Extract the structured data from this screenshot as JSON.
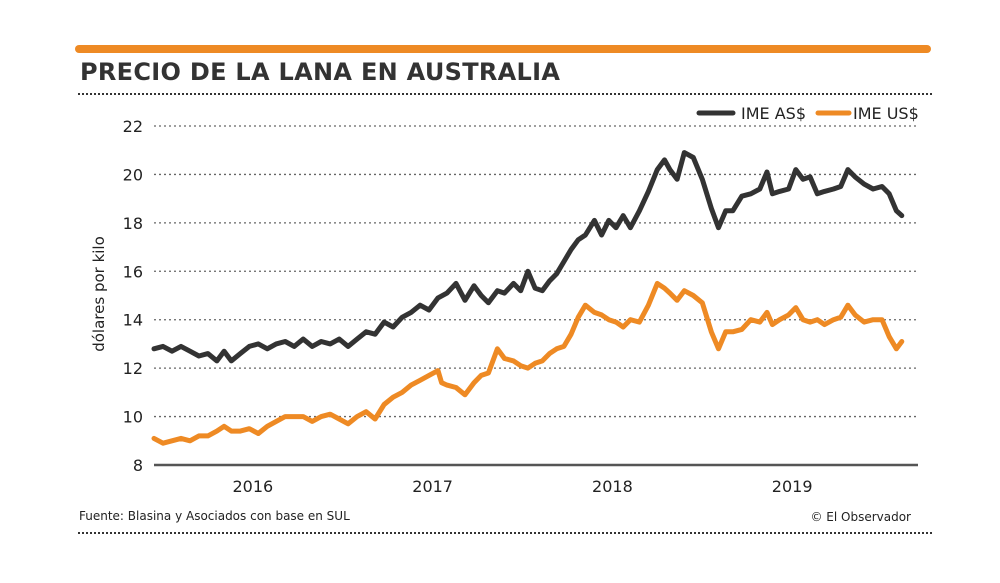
{
  "title": "PRECIO DE LA LANA EN AUSTRALIA",
  "source": "Fuente: Blasina y Asociados con base en SUL",
  "credit": "© El Observador",
  "colors": {
    "accent": "#ee8a24",
    "series_aud": "#333333",
    "series_usd": "#ee8a24",
    "grid": "#666666"
  },
  "chart_data": {
    "type": "line",
    "ylabel": "dólares por kilo",
    "xlabel": "",
    "ylim": [
      8,
      22
    ],
    "yticks": [
      "8",
      "10",
      "12",
      "14",
      "16",
      "18",
      "20",
      "22"
    ],
    "xlim": [
      2015.5,
      2019.75
    ],
    "xticks": [
      {
        "label": "2016",
        "x": 2016.05
      },
      {
        "label": "2017",
        "x": 2017.05
      },
      {
        "label": "2018",
        "x": 2018.05
      },
      {
        "label": "2019",
        "x": 2019.05
      }
    ],
    "grid": true,
    "legend_position": "top-right",
    "series": [
      {
        "name": "IME AS$",
        "color": "#333333",
        "points": [
          [
            2015.5,
            12.8
          ],
          [
            2015.55,
            12.9
          ],
          [
            2015.6,
            12.7
          ],
          [
            2015.65,
            12.9
          ],
          [
            2015.7,
            12.7
          ],
          [
            2015.75,
            12.5
          ],
          [
            2015.8,
            12.6
          ],
          [
            2015.85,
            12.3
          ],
          [
            2015.89,
            12.7
          ],
          [
            2015.93,
            12.3
          ],
          [
            2015.98,
            12.6
          ],
          [
            2016.03,
            12.9
          ],
          [
            2016.08,
            13.0
          ],
          [
            2016.13,
            12.8
          ],
          [
            2016.18,
            13.0
          ],
          [
            2016.23,
            13.1
          ],
          [
            2016.28,
            12.9
          ],
          [
            2016.33,
            13.2
          ],
          [
            2016.38,
            12.9
          ],
          [
            2016.43,
            13.1
          ],
          [
            2016.48,
            13.0
          ],
          [
            2016.53,
            13.2
          ],
          [
            2016.58,
            12.9
          ],
          [
            2016.63,
            13.2
          ],
          [
            2016.68,
            13.5
          ],
          [
            2016.73,
            13.4
          ],
          [
            2016.78,
            13.9
          ],
          [
            2016.83,
            13.7
          ],
          [
            2016.88,
            14.1
          ],
          [
            2016.93,
            14.3
          ],
          [
            2016.98,
            14.6
          ],
          [
            2017.03,
            14.4
          ],
          [
            2017.08,
            14.9
          ],
          [
            2017.13,
            15.1
          ],
          [
            2017.18,
            15.5
          ],
          [
            2017.23,
            14.8
          ],
          [
            2017.28,
            15.4
          ],
          [
            2017.32,
            15.0
          ],
          [
            2017.36,
            14.7
          ],
          [
            2017.41,
            15.2
          ],
          [
            2017.45,
            15.1
          ],
          [
            2017.5,
            15.5
          ],
          [
            2017.54,
            15.2
          ],
          [
            2017.58,
            16.0
          ],
          [
            2017.62,
            15.3
          ],
          [
            2017.66,
            15.2
          ],
          [
            2017.7,
            15.6
          ],
          [
            2017.74,
            15.9
          ],
          [
            2017.78,
            16.4
          ],
          [
            2017.82,
            16.9
          ],
          [
            2017.86,
            17.3
          ],
          [
            2017.9,
            17.5
          ],
          [
            2017.95,
            18.1
          ],
          [
            2017.99,
            17.5
          ],
          [
            2018.03,
            18.1
          ],
          [
            2018.07,
            17.8
          ],
          [
            2018.11,
            18.3
          ],
          [
            2018.15,
            17.8
          ],
          [
            2018.2,
            18.5
          ],
          [
            2018.25,
            19.3
          ],
          [
            2018.3,
            20.2
          ],
          [
            2018.34,
            20.6
          ],
          [
            2018.37,
            20.2
          ],
          [
            2018.41,
            19.8
          ],
          [
            2018.45,
            20.9
          ],
          [
            2018.5,
            20.7
          ],
          [
            2018.55,
            19.8
          ],
          [
            2018.6,
            18.6
          ],
          [
            2018.64,
            17.8
          ],
          [
            2018.68,
            18.5
          ],
          [
            2018.72,
            18.5
          ],
          [
            2018.77,
            19.1
          ],
          [
            2018.82,
            19.2
          ],
          [
            2018.87,
            19.4
          ],
          [
            2018.91,
            20.1
          ],
          [
            2018.94,
            19.2
          ],
          [
            2018.98,
            19.3
          ],
          [
            2019.03,
            19.4
          ],
          [
            2019.07,
            20.2
          ],
          [
            2019.11,
            19.8
          ],
          [
            2019.15,
            19.9
          ],
          [
            2019.19,
            19.2
          ],
          [
            2019.23,
            19.3
          ],
          [
            2019.28,
            19.4
          ],
          [
            2019.32,
            19.5
          ],
          [
            2019.36,
            20.2
          ],
          [
            2019.4,
            19.9
          ],
          [
            2019.45,
            19.6
          ],
          [
            2019.5,
            19.4
          ],
          [
            2019.55,
            19.5
          ],
          [
            2019.59,
            19.2
          ],
          [
            2019.63,
            18.5
          ],
          [
            2019.66,
            18.3
          ]
        ]
      },
      {
        "name": "IME US$",
        "color": "#ee8a24",
        "points": [
          [
            2015.5,
            9.1
          ],
          [
            2015.55,
            8.9
          ],
          [
            2015.6,
            9.0
          ],
          [
            2015.65,
            9.1
          ],
          [
            2015.7,
            9.0
          ],
          [
            2015.75,
            9.2
          ],
          [
            2015.8,
            9.2
          ],
          [
            2015.85,
            9.4
          ],
          [
            2015.89,
            9.6
          ],
          [
            2015.93,
            9.4
          ],
          [
            2015.98,
            9.4
          ],
          [
            2016.03,
            9.5
          ],
          [
            2016.08,
            9.3
          ],
          [
            2016.13,
            9.6
          ],
          [
            2016.18,
            9.8
          ],
          [
            2016.23,
            10.0
          ],
          [
            2016.28,
            10.0
          ],
          [
            2016.33,
            10.0
          ],
          [
            2016.38,
            9.8
          ],
          [
            2016.43,
            10.0
          ],
          [
            2016.48,
            10.1
          ],
          [
            2016.53,
            9.9
          ],
          [
            2016.58,
            9.7
          ],
          [
            2016.63,
            10.0
          ],
          [
            2016.68,
            10.2
          ],
          [
            2016.73,
            9.9
          ],
          [
            2016.78,
            10.5
          ],
          [
            2016.83,
            10.8
          ],
          [
            2016.88,
            11.0
          ],
          [
            2016.93,
            11.3
          ],
          [
            2016.98,
            11.5
          ],
          [
            2017.03,
            11.7
          ],
          [
            2017.08,
            11.9
          ],
          [
            2017.1,
            11.4
          ],
          [
            2017.13,
            11.3
          ],
          [
            2017.18,
            11.2
          ],
          [
            2017.23,
            10.9
          ],
          [
            2017.28,
            11.4
          ],
          [
            2017.32,
            11.7
          ],
          [
            2017.36,
            11.8
          ],
          [
            2017.41,
            12.8
          ],
          [
            2017.45,
            12.4
          ],
          [
            2017.5,
            12.3
          ],
          [
            2017.54,
            12.1
          ],
          [
            2017.58,
            12.0
          ],
          [
            2017.62,
            12.2
          ],
          [
            2017.66,
            12.3
          ],
          [
            2017.7,
            12.6
          ],
          [
            2017.74,
            12.8
          ],
          [
            2017.78,
            12.9
          ],
          [
            2017.82,
            13.4
          ],
          [
            2017.86,
            14.1
          ],
          [
            2017.9,
            14.6
          ],
          [
            2017.95,
            14.3
          ],
          [
            2017.99,
            14.2
          ],
          [
            2018.03,
            14.0
          ],
          [
            2018.07,
            13.9
          ],
          [
            2018.11,
            13.7
          ],
          [
            2018.15,
            14.0
          ],
          [
            2018.2,
            13.9
          ],
          [
            2018.25,
            14.6
          ],
          [
            2018.3,
            15.5
          ],
          [
            2018.34,
            15.3
          ],
          [
            2018.37,
            15.1
          ],
          [
            2018.41,
            14.8
          ],
          [
            2018.45,
            15.2
          ],
          [
            2018.5,
            15.0
          ],
          [
            2018.55,
            14.7
          ],
          [
            2018.6,
            13.5
          ],
          [
            2018.64,
            12.8
          ],
          [
            2018.68,
            13.5
          ],
          [
            2018.72,
            13.5
          ],
          [
            2018.77,
            13.6
          ],
          [
            2018.82,
            14.0
          ],
          [
            2018.87,
            13.9
          ],
          [
            2018.91,
            14.3
          ],
          [
            2018.94,
            13.8
          ],
          [
            2018.98,
            14.0
          ],
          [
            2019.03,
            14.2
          ],
          [
            2019.07,
            14.5
          ],
          [
            2019.11,
            14.0
          ],
          [
            2019.15,
            13.9
          ],
          [
            2019.19,
            14.0
          ],
          [
            2019.23,
            13.8
          ],
          [
            2019.28,
            14.0
          ],
          [
            2019.32,
            14.1
          ],
          [
            2019.36,
            14.6
          ],
          [
            2019.4,
            14.2
          ],
          [
            2019.45,
            13.9
          ],
          [
            2019.5,
            14.0
          ],
          [
            2019.55,
            14.0
          ],
          [
            2019.59,
            13.3
          ],
          [
            2019.63,
            12.8
          ],
          [
            2019.66,
            13.1
          ]
        ]
      }
    ]
  }
}
